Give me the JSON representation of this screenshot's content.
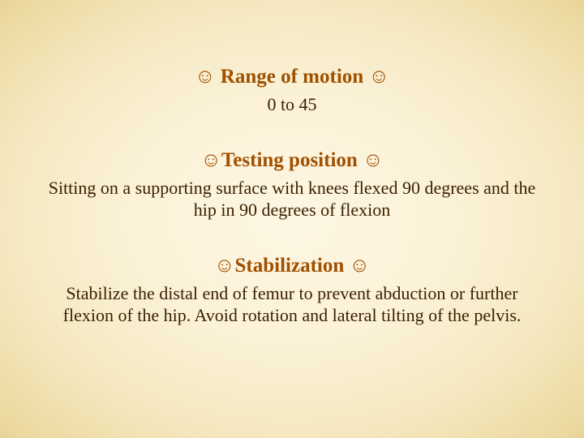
{
  "slide": {
    "background": {
      "center_color": "#fdf6e3",
      "edge_color": "#b8873e",
      "type": "radial-gradient"
    },
    "headings": {
      "color": "#a05000",
      "fontsize": 25,
      "font_family": "Comic Sans MS",
      "decoration": "smiley-flank"
    },
    "body": {
      "color": "#3a1f00",
      "fontsize": 22,
      "font_family": "Comic Sans MS"
    },
    "smiley_glyph": "☺",
    "sections": [
      {
        "title": "Range of motion",
        "text": "0 to 45"
      },
      {
        "title": "Testing position",
        "text": "Sitting on a supporting surface with knees flexed 90 degrees and the hip in 90 degrees of flexion"
      },
      {
        "title": "Stabilization",
        "text": "Stabilize the distal end of femur to prevent abduction or further flexion of the hip. Avoid rotation and lateral tilting of the pelvis."
      }
    ]
  }
}
